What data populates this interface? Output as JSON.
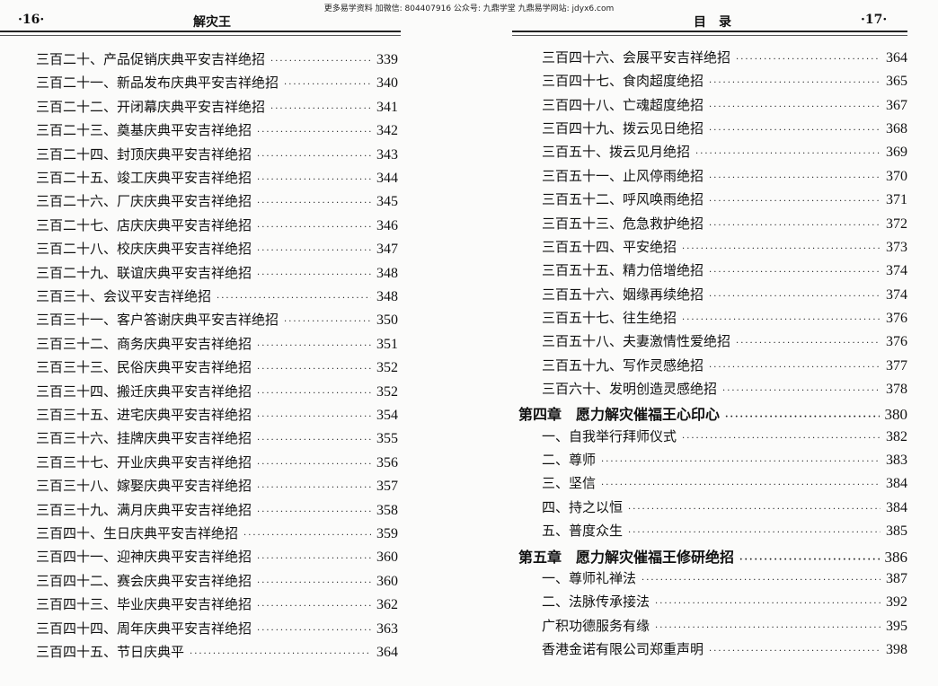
{
  "watermark": "更多易学资料 加微信: 804407916 公众号: 九鼎学堂 九鼎易学网站: jdyx6.com",
  "left_page": {
    "page_number": "·16·",
    "running_title": "解灾王",
    "entries": [
      {
        "title": "三百二十、产品促销庆典平安吉祥绝招",
        "page": "339"
      },
      {
        "title": "三百二十一、新品发布庆典平安吉祥绝招",
        "page": "340"
      },
      {
        "title": "三百二十二、开闭幕庆典平安吉祥绝招",
        "page": "341"
      },
      {
        "title": "三百二十三、奠基庆典平安吉祥绝招",
        "page": "342"
      },
      {
        "title": "三百二十四、封顶庆典平安吉祥绝招",
        "page": "343"
      },
      {
        "title": "三百二十五、竣工庆典平安吉祥绝招",
        "page": "344"
      },
      {
        "title": "三百二十六、厂庆庆典平安吉祥绝招",
        "page": "345"
      },
      {
        "title": "三百二十七、店庆庆典平安吉祥绝招",
        "page": "346"
      },
      {
        "title": "三百二十八、校庆庆典平安吉祥绝招",
        "page": "347"
      },
      {
        "title": "三百二十九、联谊庆典平安吉祥绝招",
        "page": "348"
      },
      {
        "title": "三百三十、会议平安吉祥绝招",
        "page": "348"
      },
      {
        "title": "三百三十一、客户答谢庆典平安吉祥绝招",
        "page": "350"
      },
      {
        "title": "三百三十二、商务庆典平安吉祥绝招",
        "page": "351"
      },
      {
        "title": "三百三十三、民俗庆典平安吉祥绝招",
        "page": "352"
      },
      {
        "title": "三百三十四、搬迁庆典平安吉祥绝招",
        "page": "352"
      },
      {
        "title": "三百三十五、进宅庆典平安吉祥绝招",
        "page": "354"
      },
      {
        "title": "三百三十六、挂牌庆典平安吉祥绝招",
        "page": "355"
      },
      {
        "title": "三百三十七、开业庆典平安吉祥绝招",
        "page": "356"
      },
      {
        "title": "三百三十八、嫁娶庆典平安吉祥绝招",
        "page": "357"
      },
      {
        "title": "三百三十九、满月庆典平安吉祥绝招",
        "page": "358"
      },
      {
        "title": "三百四十、生日庆典平安吉祥绝招",
        "page": "359"
      },
      {
        "title": "三百四十一、迎神庆典平安吉祥绝招",
        "page": "360"
      },
      {
        "title": "三百四十二、赛会庆典平安吉祥绝招",
        "page": "360"
      },
      {
        "title": "三百四十三、毕业庆典平安吉祥绝招",
        "page": "362"
      },
      {
        "title": "三百四十四、周年庆典平安吉祥绝招",
        "page": "363"
      },
      {
        "title": "三百四十五、节日庆典平",
        "page": "364"
      }
    ]
  },
  "right_page": {
    "page_number": "·17·",
    "running_title": "目　录",
    "entries": [
      {
        "title": "三百四十六、会展平安吉祥绝招",
        "page": "364",
        "level": "item"
      },
      {
        "title": "三百四十七、食肉超度绝招",
        "page": "365",
        "level": "item"
      },
      {
        "title": "三百四十八、亡魂超度绝招",
        "page": "367",
        "level": "item"
      },
      {
        "title": "三百四十九、拨云见日绝招",
        "page": "368",
        "level": "item"
      },
      {
        "title": "三百五十、拨云见月绝招",
        "page": "369",
        "level": "item"
      },
      {
        "title": "三百五十一、止风停雨绝招",
        "page": "370",
        "level": "item"
      },
      {
        "title": "三百五十二、呼风唤雨绝招",
        "page": "371",
        "level": "item"
      },
      {
        "title": "三百五十三、危急救护绝招",
        "page": "372",
        "level": "item"
      },
      {
        "title": "三百五十四、平安绝招",
        "page": "373",
        "level": "item"
      },
      {
        "title": "三百五十五、精力倍增绝招",
        "page": "374",
        "level": "item"
      },
      {
        "title": "三百五十六、姻缘再续绝招",
        "page": "374",
        "level": "item"
      },
      {
        "title": "三百五十七、往生绝招",
        "page": "376",
        "level": "item"
      },
      {
        "title": "三百五十八、夫妻激情性爱绝招",
        "page": "376",
        "level": "item"
      },
      {
        "title": "三百五十九、写作灵感绝招",
        "page": "377",
        "level": "item"
      },
      {
        "title": "三百六十、发明创造灵感绝招",
        "page": "378",
        "level": "item"
      },
      {
        "title": "第四章　愿力解灾催福王心印心",
        "page": "380",
        "level": "chapter"
      },
      {
        "title": "一、自我举行拜师仪式",
        "page": "382",
        "level": "sub"
      },
      {
        "title": "二、尊师",
        "page": "383",
        "level": "sub"
      },
      {
        "title": "三、坚信",
        "page": "384",
        "level": "sub"
      },
      {
        "title": "四、持之以恒",
        "page": "384",
        "level": "sub"
      },
      {
        "title": "五、普度众生",
        "page": "385",
        "level": "sub"
      },
      {
        "title": "第五章　愿力解灾催福王修研绝招",
        "page": "386",
        "level": "chapter"
      },
      {
        "title": "一、尊师礼禅法",
        "page": "387",
        "level": "sub"
      },
      {
        "title": "二、法脉传承接法",
        "page": "392",
        "level": "sub"
      },
      {
        "title": "广积功德服务有缘",
        "page": "395",
        "level": "sub"
      },
      {
        "title": "香港金诺有限公司郑重声明",
        "page": "398",
        "level": "sub"
      }
    ]
  }
}
